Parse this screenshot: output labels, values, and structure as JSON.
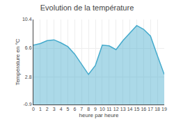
{
  "chart_data": {
    "type": "area",
    "title": "Evolution de la température",
    "xlabel": "heure par heure",
    "ylabel": "Température en °C",
    "x": [
      0,
      1,
      2,
      3,
      4,
      5,
      6,
      7,
      8,
      9,
      10,
      11,
      12,
      13,
      14,
      15,
      16,
      17,
      18,
      19
    ],
    "values": [
      7.0,
      7.2,
      7.6,
      7.7,
      7.3,
      6.8,
      5.8,
      4.4,
      3.1,
      4.3,
      7.0,
      6.9,
      6.4,
      7.6,
      8.6,
      9.6,
      9.1,
      8.2,
      5.6,
      3.1
    ],
    "color": "#44aacc",
    "xlim": [
      0,
      19
    ],
    "xticks": [
      0,
      1,
      2,
      3,
      4,
      5,
      6,
      7,
      8,
      9,
      10,
      11,
      12,
      13,
      14,
      15,
      16,
      17,
      18,
      19
    ],
    "ylim": [
      -0.9,
      10.4
    ],
    "yticks": [
      -0.9,
      2.8,
      6.6,
      10.4
    ],
    "grid": true
  }
}
